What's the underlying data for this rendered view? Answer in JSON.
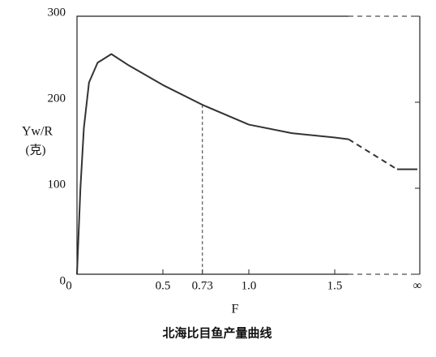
{
  "chart_data": {
    "type": "line",
    "title": "北海比目鱼产量曲线",
    "x_label": "F",
    "y_label": "Yw/R",
    "y_unit": "(克)",
    "x": [
      0,
      0.02,
      0.04,
      0.07,
      0.12,
      0.2,
      0.3,
      0.5,
      0.73,
      1.0,
      1.25,
      1.5,
      1.58
    ],
    "series": [
      {
        "name": "Yw/R",
        "color": "#333333",
        "values": [
          0,
          100,
          170,
          223,
          246,
          256,
          243,
          220,
          197,
          174,
          164,
          159,
          157
        ]
      }
    ],
    "infinity_label": "∞",
    "infinity_value": 122,
    "reference_x": 0.73,
    "xlim": [
      0,
      1.58
    ],
    "ylim": [
      0,
      300
    ],
    "xticks": [
      0,
      0.5,
      0.73,
      {
        "value": 1.0,
        "label": "1.0"
      },
      1.5
    ],
    "yticks": [
      0,
      100,
      200,
      300
    ]
  }
}
